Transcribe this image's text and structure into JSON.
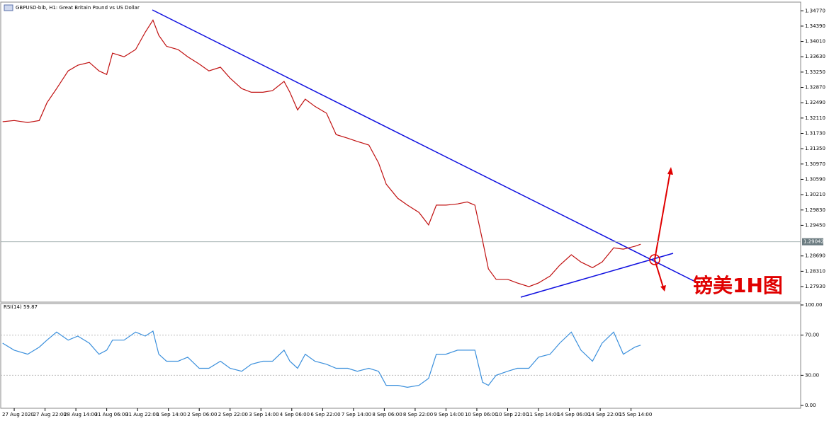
{
  "chart_data": [
    {
      "type": "line",
      "title": "GBPUSD-bib, H1:  Great Britain Pound vs US Dollar",
      "x": [
        -6,
        0,
        7,
        13,
        17,
        22,
        28,
        33,
        39,
        44,
        48,
        51,
        57,
        63,
        68,
        72,
        75,
        79,
        85,
        90,
        96,
        101,
        107,
        112,
        118,
        123,
        129,
        134,
        140,
        143,
        147,
        151,
        156,
        162,
        167,
        173,
        178,
        184,
        189,
        193,
        199,
        204,
        210,
        215,
        219,
        224,
        230,
        235,
        239,
        243,
        246,
        250,
        256,
        261,
        267,
        272,
        278,
        283,
        289,
        294,
        300,
        305,
        311,
        316,
        322,
        325
      ],
      "series": [
        {
          "color": "#c01010",
          "values": [
            1.3202,
            1.3205,
            1.32,
            1.3205,
            1.3249,
            1.3284,
            1.3328,
            1.3342,
            1.3349,
            1.3328,
            1.3319,
            1.3372,
            1.3363,
            1.3381,
            1.3424,
            1.3454,
            1.3416,
            1.3389,
            1.3381,
            1.3363,
            1.3345,
            1.3328,
            1.3337,
            1.331,
            1.3284,
            1.3275,
            1.3275,
            1.3279,
            1.3302,
            1.3275,
            1.3231,
            1.3258,
            1.324,
            1.3223,
            1.317,
            1.3161,
            1.3153,
            1.3144,
            1.31,
            1.3047,
            1.3012,
            1.2995,
            1.2977,
            1.2946,
            1.2995,
            1.2995,
            1.2998,
            1.3003,
            1.2995,
            1.2907,
            1.2837,
            1.2811,
            1.2811,
            1.2802,
            1.2793,
            1.2802,
            1.2819,
            1.2846,
            1.2872,
            1.2854,
            1.284,
            1.2854,
            1.2889,
            1.2886,
            1.2893,
            1.2898
          ]
        }
      ],
      "xlim": [
        -7,
        408
      ],
      "xticks": [
        {
          "value": 0,
          "label": "27 Aug 2020"
        },
        {
          "value": 16,
          "label": "27 Aug 22:00"
        },
        {
          "value": 32,
          "label": "28 Aug 14:00"
        },
        {
          "value": 48,
          "label": "31 Aug 06:00"
        },
        {
          "value": 64,
          "label": "31 Aug 22:00"
        },
        {
          "value": 80,
          "label": "1 Sep 14:00"
        },
        {
          "value": 96,
          "label": "2 Sep 06:00"
        },
        {
          "value": 112,
          "label": "2 Sep 22:00"
        },
        {
          "value": 128,
          "label": "3 Sep 14:00"
        },
        {
          "value": 144,
          "label": "4 Sep 06:00"
        },
        {
          "value": 160,
          "label": "6 Sep 22:00"
        },
        {
          "value": 176,
          "label": "7 Sep 14:00"
        },
        {
          "value": 192,
          "label": "8 Sep 06:00"
        },
        {
          "value": 208,
          "label": "8 Sep 22:00"
        },
        {
          "value": 224,
          "label": "9 Sep 14:00"
        },
        {
          "value": 240,
          "label": "10 Sep 06:00"
        },
        {
          "value": 256,
          "label": "10 Sep 22:00"
        },
        {
          "value": 272,
          "label": "11 Sep 14:00"
        },
        {
          "value": 288,
          "label": "14 Sep 06:00"
        },
        {
          "value": 304,
          "label": "14 Sep 22:00"
        },
        {
          "value": 320,
          "label": "15 Sep 14:00"
        }
      ],
      "ylim": [
        1.2758,
        1.3495
      ],
      "yticks": [
        {
          "value": 1.3477,
          "label": "1.34770"
        },
        {
          "value": 1.3439,
          "label": "1.34390"
        },
        {
          "value": 1.3401,
          "label": "1.34010"
        },
        {
          "value": 1.3363,
          "label": "1.33630"
        },
        {
          "value": 1.3325,
          "label": "1.33250"
        },
        {
          "value": 1.3287,
          "label": "1.32870"
        },
        {
          "value": 1.3249,
          "label": "1.32490"
        },
        {
          "value": 1.3211,
          "label": "1.32110"
        },
        {
          "value": 1.3173,
          "label": "1.31730"
        },
        {
          "value": 1.3135,
          "label": "1.31350"
        },
        {
          "value": 1.3097,
          "label": "1.30970"
        },
        {
          "value": 1.3059,
          "label": "1.30590"
        },
        {
          "value": 1.3021,
          "label": "1.30210"
        },
        {
          "value": 1.2983,
          "label": "1.29830"
        },
        {
          "value": 1.2945,
          "label": "1.29450"
        },
        {
          "value": 1.2869,
          "label": "1.28690"
        },
        {
          "value": 1.2831,
          "label": "1.28310"
        },
        {
          "value": 1.2793,
          "label": "1.27930"
        }
      ],
      "current_price": {
        "value": 1.29042,
        "label": "1.29042"
      },
      "annotation": "镑美1H图"
    },
    {
      "type": "line",
      "title": "RSI(14) 59.87",
      "x": [
        -6,
        0,
        7,
        13,
        17,
        22,
        28,
        33,
        39,
        44,
        48,
        51,
        57,
        63,
        68,
        72,
        75,
        79,
        85,
        90,
        96,
        101,
        107,
        112,
        118,
        123,
        129,
        134,
        140,
        143,
        147,
        151,
        156,
        162,
        167,
        173,
        178,
        184,
        189,
        193,
        199,
        204,
        210,
        215,
        219,
        224,
        230,
        235,
        239,
        243,
        246,
        250,
        256,
        261,
        267,
        272,
        278,
        283,
        289,
        294,
        300,
        305,
        311,
        316,
        322,
        325
      ],
      "series": [
        {
          "color": "#3a8fdc",
          "values": [
            62,
            55,
            51,
            58,
            65,
            73,
            65,
            69,
            62,
            51,
            55,
            65,
            65,
            73,
            69,
            74,
            51,
            44,
            44,
            48,
            37,
            37,
            44,
            37,
            34,
            41,
            44,
            44,
            55,
            44,
            37,
            51,
            44,
            41,
            37,
            37,
            34,
            37,
            34,
            20,
            20,
            18,
            20,
            27,
            51,
            51,
            55,
            55,
            55,
            23,
            20,
            30,
            34,
            37,
            37,
            48,
            51,
            62,
            73,
            55,
            44,
            62,
            73,
            51,
            58,
            60
          ]
        }
      ],
      "xlim": [
        -7,
        408
      ],
      "ylim": [
        0,
        100
      ],
      "yticks": [
        {
          "value": 100,
          "label": "100.00"
        },
        {
          "value": 70,
          "label": "70.00"
        },
        {
          "value": 30,
          "label": "30.00"
        },
        {
          "value": 0,
          "label": "0.00"
        }
      ]
    }
  ]
}
